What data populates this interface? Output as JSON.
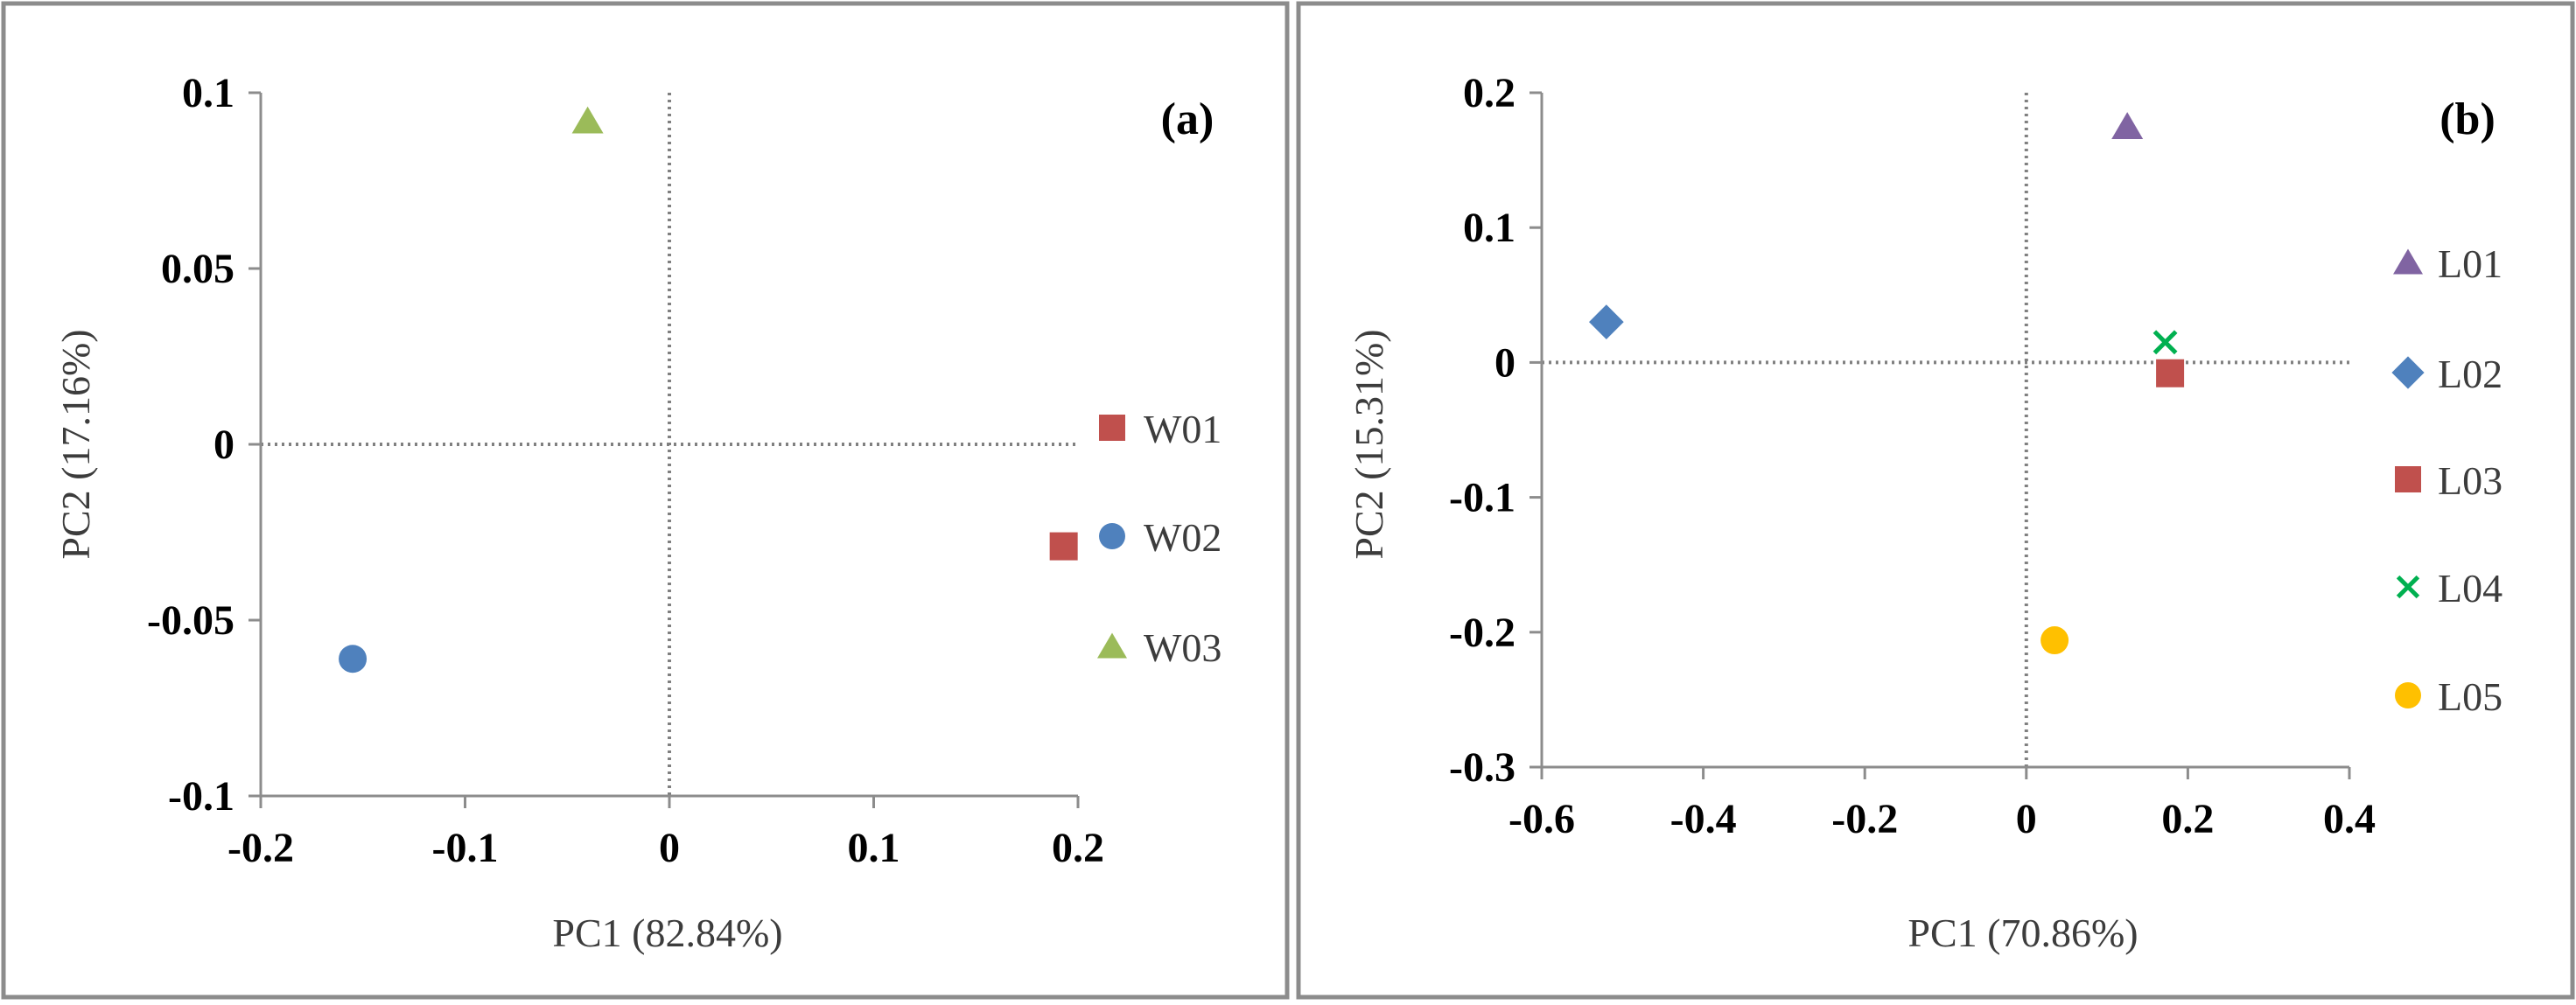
{
  "chart_data": [
    {
      "type": "scatter",
      "panel_label": "(a)",
      "title": "",
      "xlabel": "PC1 (82.84%)",
      "ylabel": "PC2 (17.16%)",
      "xlim": [
        -0.2,
        0.2
      ],
      "ylim": [
        -0.1,
        0.1
      ],
      "xticks": [
        -0.2,
        -0.1,
        0,
        0.1,
        0.2
      ],
      "yticks": [
        -0.1,
        -0.05,
        0,
        0.05,
        0.1
      ],
      "xtick_labels": [
        "-0.2",
        "-0.1",
        "0",
        "0.1",
        "0.2"
      ],
      "ytick_labels": [
        "-0.1",
        "-0.05",
        "0",
        "0.05",
        "0.1"
      ],
      "grid": false,
      "reference_lines": "dotted lines at x=0 and y=0",
      "legend_position": "right",
      "series": [
        {
          "name": "W01",
          "marker": "square",
          "color": "#C0504D",
          "x": [
            0.193
          ],
          "y": [
            -0.029
          ]
        },
        {
          "name": "W02",
          "marker": "circle",
          "color": "#4F81BD",
          "x": [
            -0.155
          ],
          "y": [
            -0.061
          ]
        },
        {
          "name": "W03",
          "marker": "triangle",
          "color": "#9BBB59",
          "x": [
            -0.04
          ],
          "y": [
            0.092
          ]
        }
      ]
    },
    {
      "type": "scatter",
      "panel_label": "(b)",
      "title": "",
      "xlabel": "PC1 (70.86%)",
      "ylabel": "PC2 (15.31%)",
      "xlim": [
        -0.6,
        0.4
      ],
      "ylim": [
        -0.3,
        0.2
      ],
      "xticks": [
        -0.6,
        -0.4,
        -0.2,
        0,
        0.2,
        0.4
      ],
      "yticks": [
        -0.3,
        -0.2,
        -0.1,
        0,
        0.1,
        0.2
      ],
      "xtick_labels": [
        "-0.6",
        "-0.4",
        "-0.2",
        "0",
        "0.2",
        "0.4"
      ],
      "ytick_labels": [
        "-0.3",
        "-0.2",
        "-0.1",
        "0",
        "0.1",
        "0.2"
      ],
      "grid": false,
      "reference_lines": "dotted lines at x=0 and y=0",
      "legend_position": "right",
      "series": [
        {
          "name": "L01",
          "marker": "triangle",
          "color": "#8064A2",
          "x": [
            0.125
          ],
          "y": [
            0.175
          ]
        },
        {
          "name": "L02",
          "marker": "diamond",
          "color": "#4F81BD",
          "x": [
            -0.52
          ],
          "y": [
            0.03
          ]
        },
        {
          "name": "L03",
          "marker": "square",
          "color": "#C0504D",
          "x": [
            0.178
          ],
          "y": [
            -0.008
          ]
        },
        {
          "name": "L04",
          "marker": "x",
          "color": "#00B050",
          "x": [
            0.172
          ],
          "y": [
            0.015
          ]
        },
        {
          "name": "L05",
          "marker": "circle",
          "color": "#FFC000",
          "x": [
            0.035
          ],
          "y": [
            -0.206
          ]
        }
      ]
    }
  ]
}
